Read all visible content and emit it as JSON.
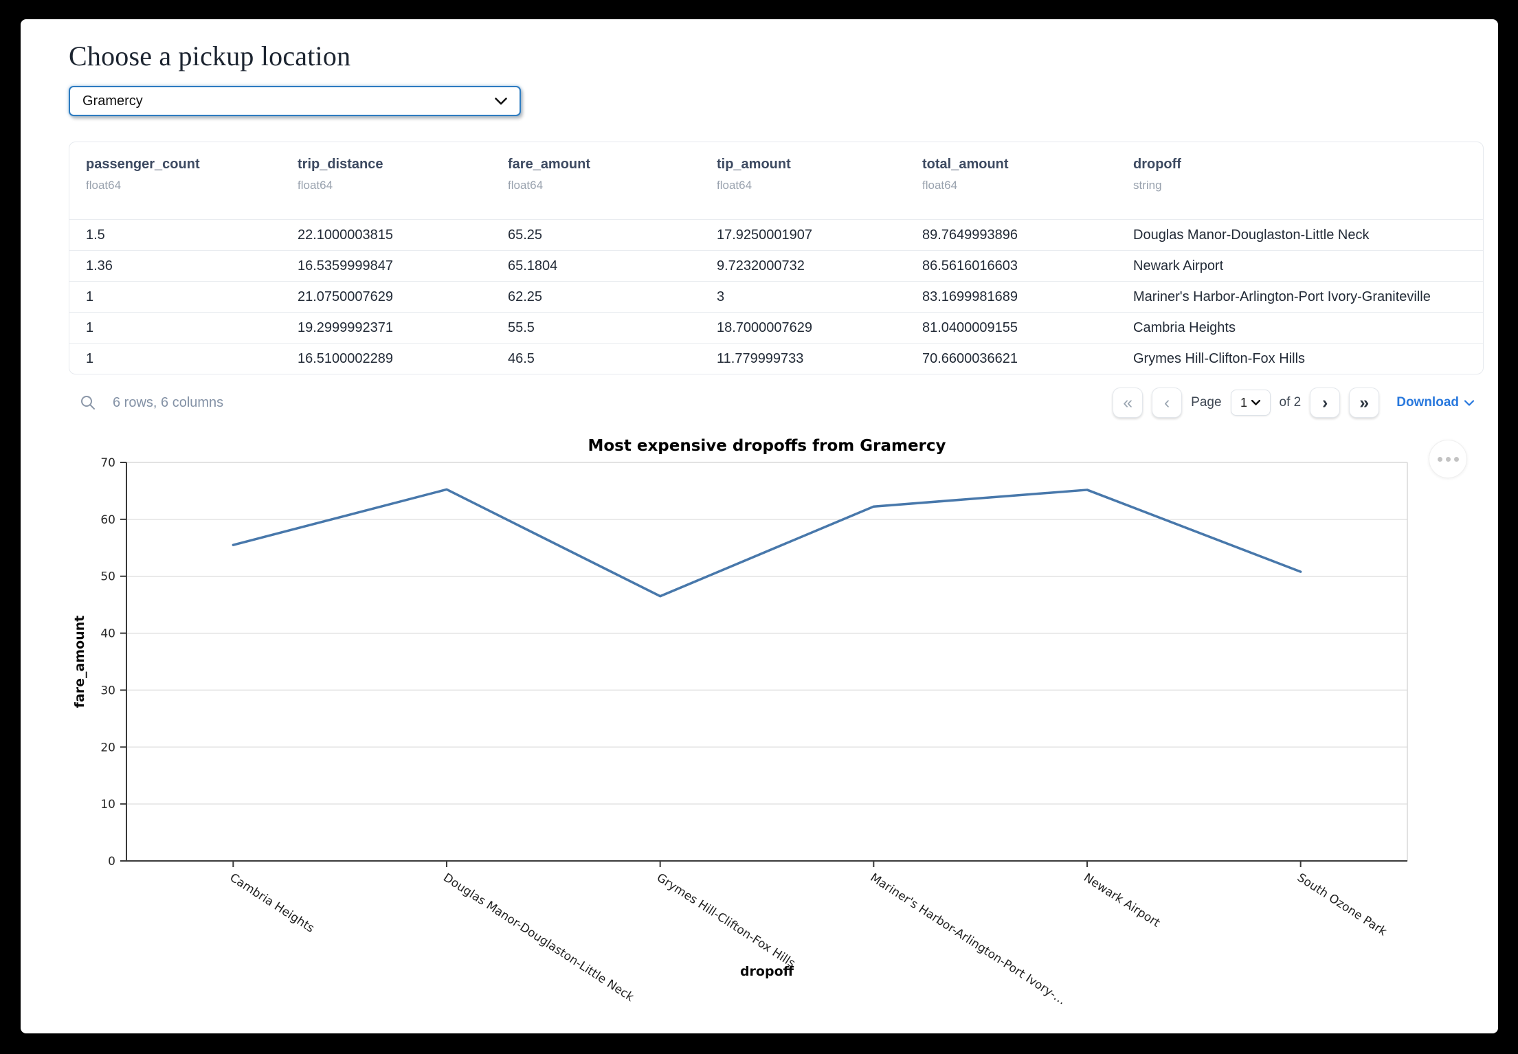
{
  "header": {
    "title": "Choose a pickup location"
  },
  "picker": {
    "value": "Gramercy"
  },
  "table": {
    "columns": [
      {
        "name": "passenger_count",
        "dtype": "float64"
      },
      {
        "name": "trip_distance",
        "dtype": "float64"
      },
      {
        "name": "fare_amount",
        "dtype": "float64"
      },
      {
        "name": "tip_amount",
        "dtype": "float64"
      },
      {
        "name": "total_amount",
        "dtype": "float64"
      },
      {
        "name": "dropoff",
        "dtype": "string"
      }
    ],
    "rows": [
      [
        "1.5",
        "22.1000003815",
        "65.25",
        "17.9250001907",
        "89.7649993896",
        "Douglas Manor-Douglaston-Little Neck"
      ],
      [
        "1.36",
        "16.5359999847",
        "65.1804",
        "9.7232000732",
        "86.5616016603",
        "Newark Airport"
      ],
      [
        "1",
        "21.0750007629",
        "62.25",
        "3",
        "83.1699981689",
        "Mariner's Harbor-Arlington-Port Ivory-Graniteville"
      ],
      [
        "1",
        "19.2999992371",
        "55.5",
        "18.7000007629",
        "81.0400009155",
        "Cambria Heights"
      ],
      [
        "1",
        "16.5100002289",
        "46.5",
        "11.779999733",
        "70.6600036621",
        "Grymes Hill-Clifton-Fox Hills"
      ]
    ]
  },
  "footer": {
    "summary": "6 rows, 6 columns",
    "pager": {
      "first_glyph": "«",
      "prev_glyph": "‹",
      "next_glyph": "›",
      "last_glyph": "»",
      "page_label": "Page",
      "page_value": "1",
      "of_label": "of 2"
    },
    "download_label": "Download",
    "accent_color": "#2878dd"
  },
  "chart_data": {
    "type": "line",
    "title": "Most expensive dropoffs from Gramercy",
    "xlabel": "dropoff",
    "ylabel": "fare_amount",
    "categories": [
      "Cambria Heights",
      "Douglas Manor-Douglaston-Little Neck",
      "Grymes Hill-Clifton-Fox Hills",
      "Mariner's Harbor-Arlington-Port Ivory-…",
      "Newark Airport",
      "South Ozone Park"
    ],
    "values": [
      55.5,
      65.25,
      46.5,
      62.25,
      65.1804,
      50.8
    ],
    "ylim": [
      0,
      70
    ],
    "yticks": [
      0,
      10,
      20,
      30,
      40,
      50,
      60,
      70
    ],
    "line_color": "#4878ab",
    "grid": true,
    "legend_position": "none"
  }
}
